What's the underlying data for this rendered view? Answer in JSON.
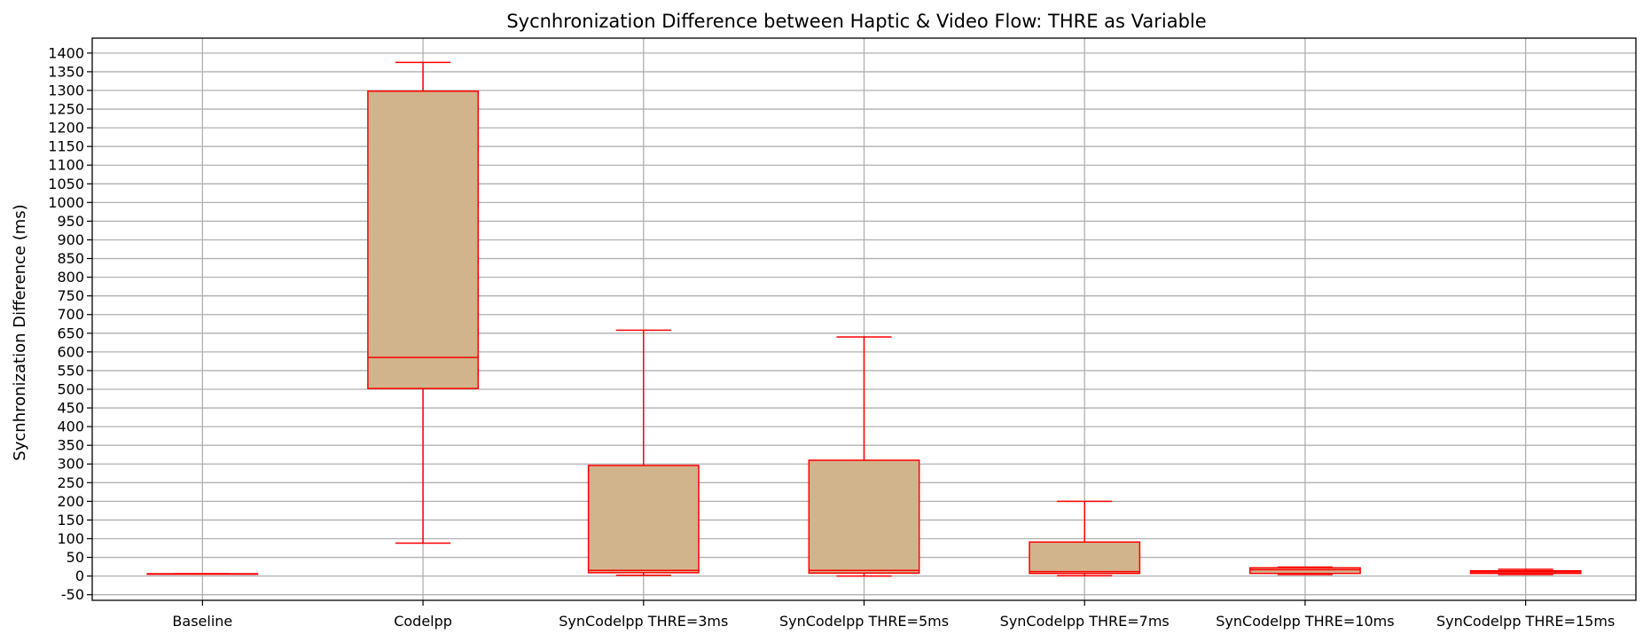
{
  "chart_data": {
    "type": "box",
    "title": "Sycnhronization Difference between Haptic & Video Flow: THRE as Variable",
    "xlabel": "",
    "ylabel": "Sycnhronization Difference (ms)",
    "ylim": [
      -65,
      1440
    ],
    "yticks": [
      -50,
      0,
      50,
      100,
      150,
      200,
      250,
      300,
      350,
      400,
      450,
      500,
      550,
      600,
      650,
      700,
      750,
      800,
      850,
      900,
      950,
      1000,
      1050,
      1100,
      1150,
      1200,
      1250,
      1300,
      1350,
      1400
    ],
    "grid": true,
    "legend": "none",
    "colors": {
      "box_fill": "#d2b48c",
      "box_edge": "#ff0000",
      "grid": "#b0b0b0"
    },
    "categories": [
      "Baseline",
      "Codelpp",
      "SynCodelpp THRE=3ms",
      "SynCodelpp THRE=5ms",
      "SynCodelpp THRE=7ms",
      "SynCodelpp THRE=10ms",
      "SynCodelpp THRE=15ms"
    ],
    "boxes": [
      {
        "whisker_low": 6,
        "q1": 6,
        "median": 6,
        "q3": 6,
        "whisker_high": 6
      },
      {
        "whisker_low": 88,
        "q1": 502,
        "median": 585,
        "q3": 1298,
        "whisker_high": 1375
      },
      {
        "whisker_low": 2,
        "q1": 9,
        "median": 15,
        "q3": 296,
        "whisker_high": 658
      },
      {
        "whisker_low": 0,
        "q1": 8,
        "median": 15,
        "q3": 310,
        "whisker_high": 640
      },
      {
        "whisker_low": 1,
        "q1": 7,
        "median": 12,
        "q3": 91,
        "whisker_high": 200
      },
      {
        "whisker_low": 4,
        "q1": 7,
        "median": 17,
        "q3": 22,
        "whisker_high": 24
      },
      {
        "whisker_low": 4,
        "q1": 7,
        "median": 11,
        "q3": 14,
        "whisker_high": 18
      }
    ]
  }
}
